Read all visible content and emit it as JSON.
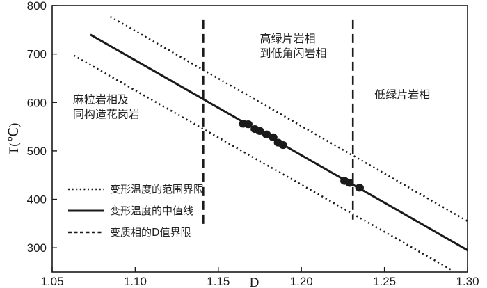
{
  "chart_data": {
    "type": "line",
    "xlabel": "D",
    "ylabel": "T(℃)",
    "xlim": [
      1.05,
      1.3
    ],
    "ylim": [
      250,
      800
    ],
    "x_ticks": [
      "1.05",
      "1.10",
      "1.15",
      "1.20",
      "1.25",
      "1.30"
    ],
    "y_ticks": [
      "300",
      "400",
      "500",
      "600",
      "700",
      "800"
    ],
    "grid": false,
    "series": [
      {
        "name": "变形温度的中值线",
        "style": "solid",
        "x": [
          1.073,
          1.3
        ],
        "y": [
          740,
          295
        ]
      },
      {
        "name": "变形温度的范围界限",
        "style": "dotted",
        "x": [
          1.085,
          1.3
        ],
        "y": [
          777,
          355
        ]
      },
      {
        "name": "变形温度的范围界限",
        "style": "dotted",
        "x": [
          1.063,
          1.29
        ],
        "y": [
          697,
          255
        ]
      },
      {
        "name": "变质相的D值界限",
        "style": "dashed",
        "x": [
          1.141,
          1.141
        ],
        "y": [
          770,
          340
        ]
      },
      {
        "name": "变质相的D值界限",
        "style": "dashed",
        "x": [
          1.231,
          1.231
        ],
        "y": [
          770,
          358
        ]
      }
    ],
    "points": [
      {
        "x": 1.165,
        "y": 556
      },
      {
        "x": 1.168,
        "y": 555
      },
      {
        "x": 1.172,
        "y": 545
      },
      {
        "x": 1.175,
        "y": 541
      },
      {
        "x": 1.179,
        "y": 534
      },
      {
        "x": 1.183,
        "y": 528
      },
      {
        "x": 1.186,
        "y": 517
      },
      {
        "x": 1.189,
        "y": 512
      },
      {
        "x": 1.226,
        "y": 438
      },
      {
        "x": 1.229,
        "y": 434
      },
      {
        "x": 1.235,
        "y": 424
      }
    ],
    "regions": [
      {
        "lines": [
          "麻粒岩相及",
          "同构造花岗岩"
        ],
        "x": 1.0625,
        "y": [
          598,
          568
        ]
      },
      {
        "lines": [
          "高绿片岩相",
          "到低角闪岩相"
        ],
        "x": 1.175,
        "y": [
          724,
          694
        ]
      },
      {
        "lines": [
          "低绿片岩相"
        ],
        "x": 1.244,
        "y": [
          608
        ]
      }
    ],
    "legend": {
      "position": "bottom-left",
      "entries": [
        {
          "label": "变形温度的范围界限",
          "style": "dotted"
        },
        {
          "label": "变形温度的中值线",
          "style": "solid"
        },
        {
          "label": "变质相的D值界限",
          "style": "dashed"
        }
      ]
    },
    "colors": {
      "line": "#1a1a1a",
      "points": "#1a1a1a"
    }
  }
}
